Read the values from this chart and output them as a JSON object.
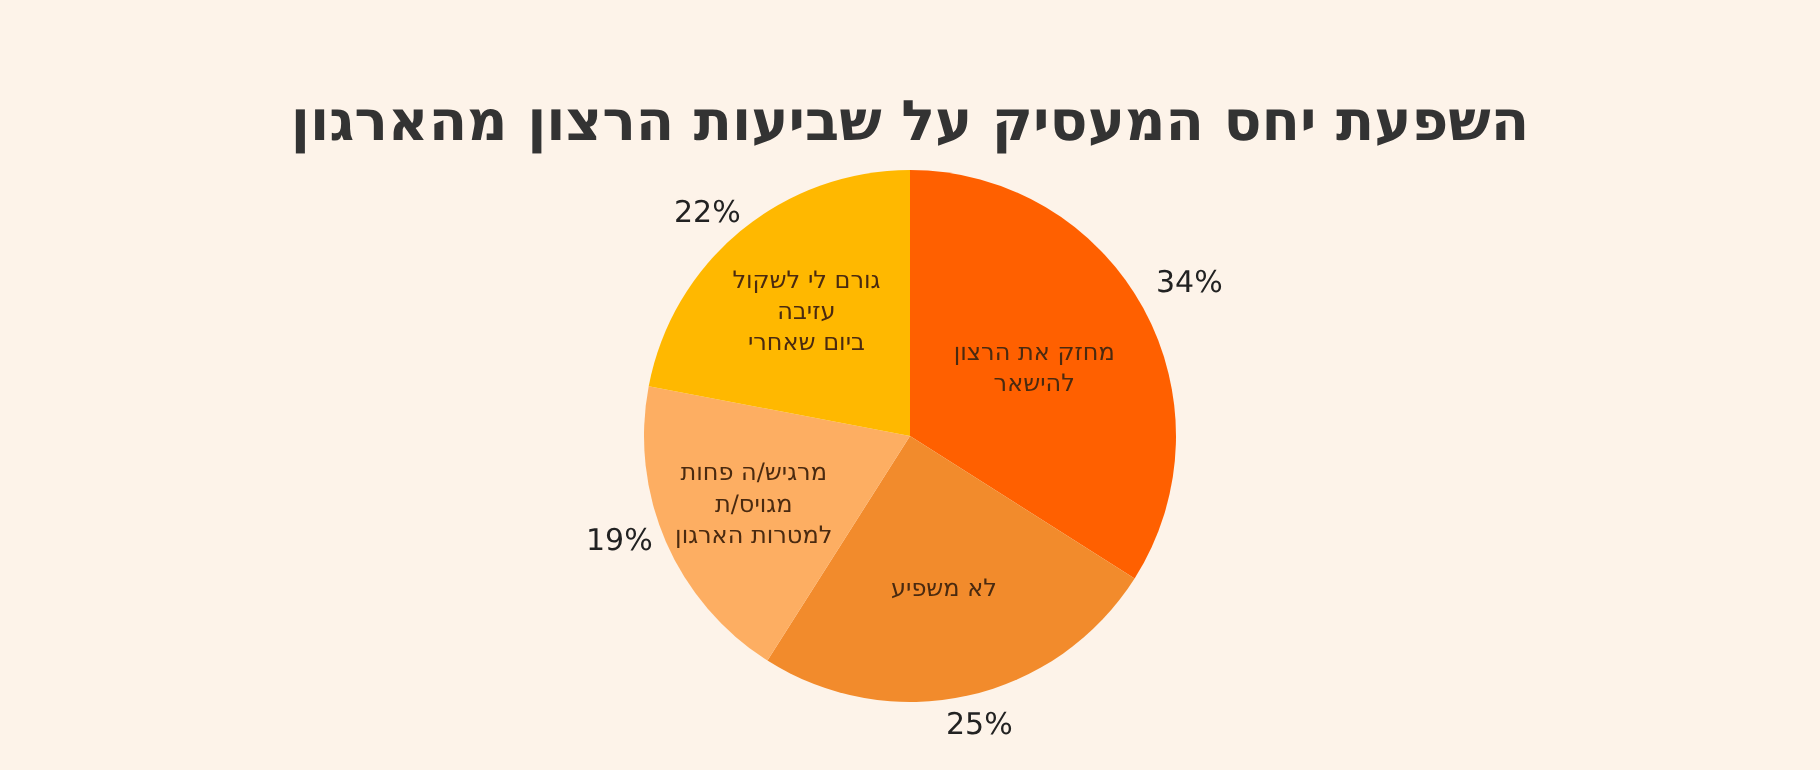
{
  "chart_data": {
    "type": "pie",
    "title": "השפעת יחס המעסיק על שביעות הרצון מהארגון",
    "categories": [
      "מחזק את הרצון\nלהישאר",
      "לא משפיע",
      "מרגיש/ה פחות\nמגויס/ת\nלמטרות הארגון",
      "גורם לי לשקול\nעזיבה\nביום שאחרי"
    ],
    "values": [
      34,
      25,
      19,
      22
    ],
    "colors": [
      "#ff6000",
      "#f28b2c",
      "#fdae62",
      "#ffb800"
    ],
    "value_labels": [
      "34%",
      "25%",
      "19%",
      "22%"
    ]
  }
}
